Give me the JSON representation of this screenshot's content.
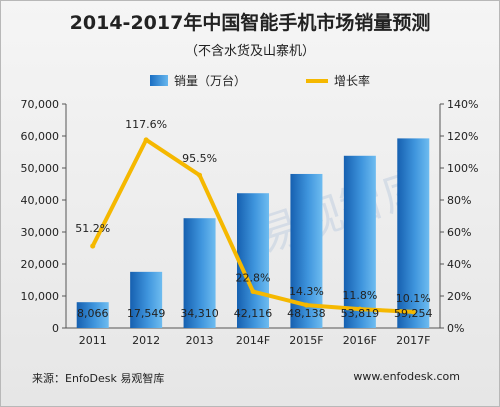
{
  "header": {
    "title": "2014-2017年中国智能手机市场销量预测",
    "subtitle": "（不含水货及山寨机）"
  },
  "footer": {
    "source": "来源：EnfoDesk 易观智库",
    "site": "www.enfodesk.com"
  },
  "watermark": "易观智库",
  "chart_data": {
    "type": "bar",
    "categories": [
      "2011",
      "2012",
      "2013",
      "2014F",
      "2015F",
      "2016F",
      "2017F"
    ],
    "series": [
      {
        "name": "销量（万台）",
        "type": "bar",
        "axis": "left",
        "values": [
          8066,
          17549,
          34310,
          42116,
          48138,
          53819,
          59254
        ],
        "labels": [
          "8,066",
          "17,549",
          "34,310",
          "42,116",
          "48,138",
          "53,819",
          "59,254"
        ],
        "color": "#1a6ec2"
      },
      {
        "name": "增长率",
        "type": "line",
        "axis": "right",
        "values": [
          51.2,
          117.6,
          95.5,
          22.8,
          14.3,
          11.8,
          10.1
        ],
        "labels": [
          "51.2%",
          "117.6%",
          "95.5%",
          "22.8%",
          "14.3%",
          "11.8%",
          "10.1%"
        ],
        "color": "#f5b800"
      }
    ],
    "y_left": {
      "lim": [
        0,
        70000
      ],
      "ticks": [
        0,
        10000,
        20000,
        30000,
        40000,
        50000,
        60000,
        70000
      ],
      "tick_labels": [
        "0",
        "10,000",
        "20,000",
        "30,000",
        "40,000",
        "50,000",
        "60,000",
        "70,000"
      ]
    },
    "y_right": {
      "lim": [
        0,
        140
      ],
      "ticks": [
        0,
        20,
        40,
        60,
        80,
        100,
        120,
        140
      ],
      "tick_labels": [
        "0%",
        "20%",
        "40%",
        "60%",
        "80%",
        "100%",
        "120%",
        "140%"
      ]
    },
    "grid": false,
    "legend": "top-center"
  }
}
